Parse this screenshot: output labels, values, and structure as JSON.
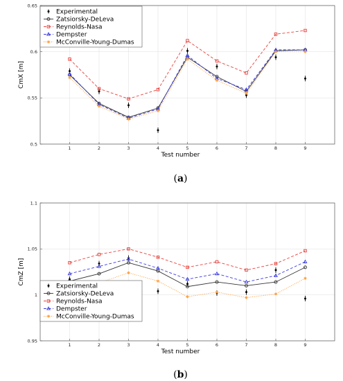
{
  "colors": {
    "Experimental": "#000000",
    "Zatsiorsky-DeLeva": "#333333",
    "Reynolds-Nasa": "#e8413c",
    "Dempster": "#3a3ae0",
    "McConville-Young-Dumas": "#ffa040"
  },
  "chart_data": [
    {
      "type": "line",
      "panel_label": "a",
      "xlabel": "Test number",
      "ylabel": "CmX [m]",
      "x": [
        1,
        2,
        3,
        4,
        5,
        6,
        7,
        8,
        9
      ],
      "xticks": [
        "1",
        "2",
        "3",
        "4",
        "5",
        "6",
        "7",
        "8",
        "9"
      ],
      "xlim": [
        0,
        10
      ],
      "ylim": [
        0.5,
        0.65
      ],
      "yticks": [
        "0.5",
        "0.55",
        "0.6",
        "0.65"
      ],
      "yticks_values": [
        0.5,
        0.55,
        0.6,
        0.65
      ],
      "grid": true,
      "legend": "top-left",
      "series": [
        {
          "name": "Experimental",
          "style": "errorbar",
          "values": [
            0.579,
            0.557,
            0.542,
            0.515,
            0.601,
            0.584,
            0.553,
            0.594,
            0.571
          ],
          "err": [
            0.003,
            0.003,
            0.003,
            0.003,
            0.003,
            0.003,
            0.003,
            0.003,
            0.003
          ]
        },
        {
          "name": "Zatsiorsky-DeLeva",
          "style": "solid",
          "marker": "circle",
          "values": [
            0.575,
            0.544,
            0.529,
            0.539,
            0.594,
            0.573,
            0.557,
            0.601,
            0.602
          ]
        },
        {
          "name": "Reynolds-Nasa",
          "style": "dashed",
          "marker": "square",
          "values": [
            0.592,
            0.56,
            0.549,
            0.559,
            0.612,
            0.59,
            0.577,
            0.619,
            0.623
          ]
        },
        {
          "name": "Dempster",
          "style": "dashed",
          "marker": "triangle",
          "values": [
            0.576,
            0.543,
            0.528,
            0.538,
            0.596,
            0.571,
            0.559,
            0.602,
            0.602
          ]
        },
        {
          "name": "McConville-Young-Dumas",
          "style": "dotted",
          "marker": "star",
          "values": [
            0.572,
            0.541,
            0.527,
            0.536,
            0.592,
            0.569,
            0.555,
            0.6,
            0.6
          ]
        }
      ]
    },
    {
      "type": "line",
      "panel_label": "b",
      "xlabel": "Test number",
      "ylabel": "CmZ [m]",
      "x": [
        1,
        2,
        3,
        4,
        5,
        6,
        7,
        8,
        9
      ],
      "xticks": [
        "1",
        "2",
        "3",
        "4",
        "5",
        "6",
        "7",
        "8",
        "9"
      ],
      "xlim": [
        0,
        10
      ],
      "ylim": [
        0.95,
        1.1
      ],
      "yticks": [
        "0.95",
        "1",
        "1.05",
        "1.1"
      ],
      "yticks_values": [
        0.95,
        1.0,
        1.05,
        1.1
      ],
      "grid": true,
      "legend": "bottom-left",
      "series": [
        {
          "name": "Experimental",
          "style": "errorbar",
          "values": [
            1.017,
            1.034,
            1.04,
            1.004,
            1.012,
            1.002,
            1.003,
            1.027,
            0.996
          ],
          "err": [
            0.003,
            0.003,
            0.003,
            0.003,
            0.003,
            0.003,
            0.003,
            0.003,
            0.003
          ]
        },
        {
          "name": "Zatsiorsky-DeLeva",
          "style": "solid",
          "marker": "circle",
          "values": [
            1.015,
            1.023,
            1.035,
            1.026,
            1.009,
            1.014,
            1.01,
            1.014,
            1.03
          ]
        },
        {
          "name": "Reynolds-Nasa",
          "style": "dashed",
          "marker": "square",
          "values": [
            1.035,
            1.044,
            1.05,
            1.041,
            1.03,
            1.036,
            1.027,
            1.034,
            1.048
          ]
        },
        {
          "name": "Dempster",
          "style": "dashed",
          "marker": "triangle",
          "values": [
            1.023,
            1.031,
            1.039,
            1.029,
            1.017,
            1.023,
            1.014,
            1.021,
            1.036
          ]
        },
        {
          "name": "McConville-Young-Dumas",
          "style": "dotted",
          "marker": "star",
          "values": [
            1.006,
            1.013,
            1.024,
            1.015,
            0.998,
            1.003,
            0.997,
            1.001,
            1.018
          ]
        }
      ]
    }
  ]
}
